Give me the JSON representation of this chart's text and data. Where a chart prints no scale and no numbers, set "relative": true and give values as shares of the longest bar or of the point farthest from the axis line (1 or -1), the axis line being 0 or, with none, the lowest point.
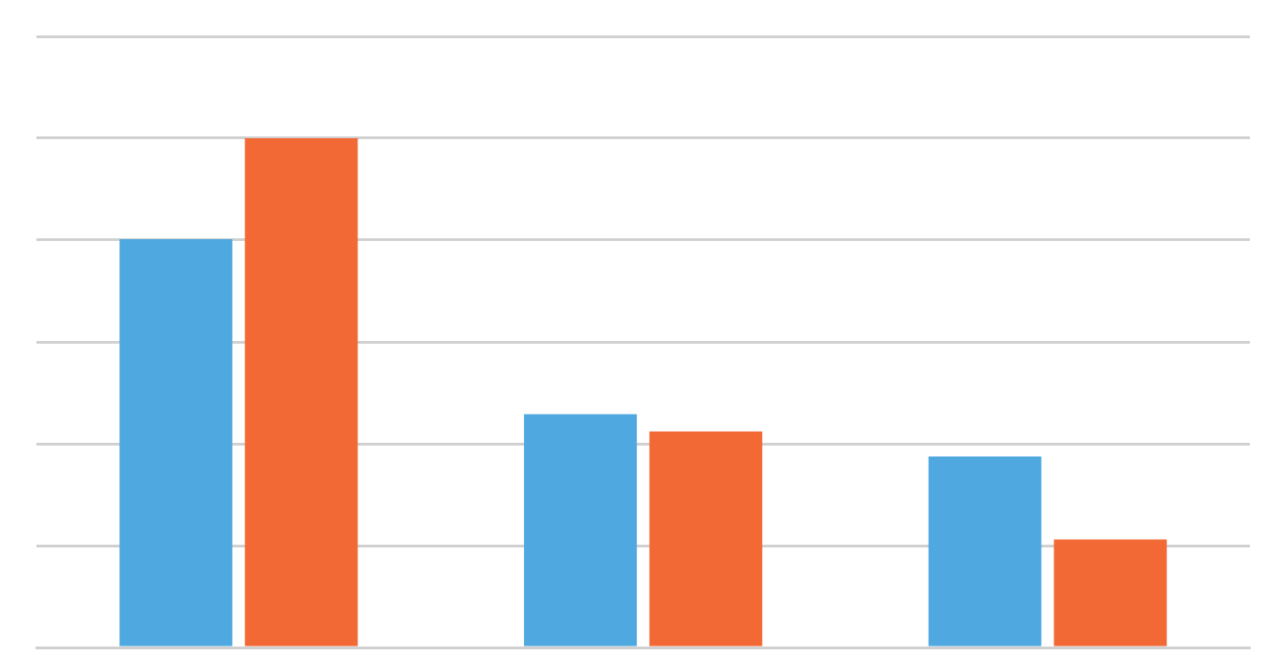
{
  "chart_data": {
    "type": "bar",
    "relative": true,
    "categories": [
      null,
      null,
      null
    ],
    "series": [
      {
        "color": "#4fa9e0",
        "values": [
          0.802,
          0.458,
          0.375
        ]
      },
      {
        "color": "#f26935",
        "values": [
          1,
          0.424,
          0.212
        ]
      }
    ],
    "grid": "y",
    "legend": false
  }
}
